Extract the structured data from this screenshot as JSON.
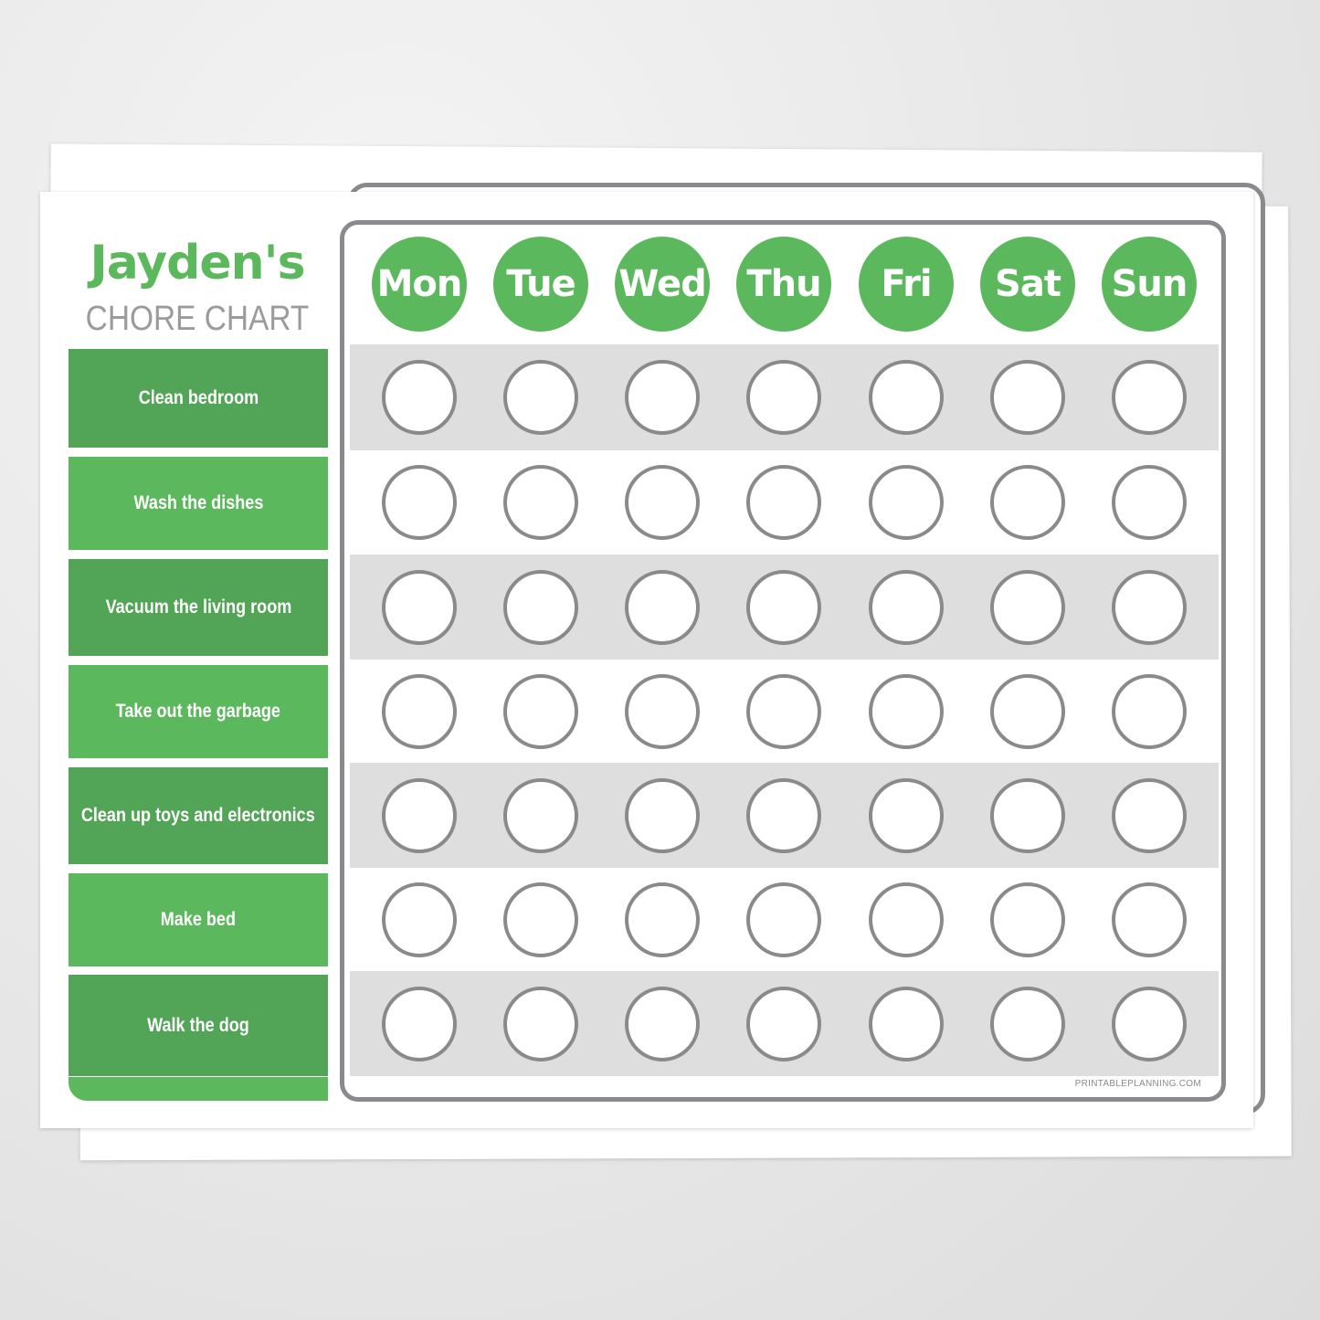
{
  "chart": {
    "title_name": "Jayden's",
    "title_sub": "CHORE CHART",
    "days": [
      "Mon",
      "Tue",
      "Wed",
      "Thu",
      "Fri",
      "Sat",
      "Sun"
    ],
    "chores": [
      "Clean bedroom",
      "Wash the dishes",
      "Vacuum the living room",
      "Take out the garbage",
      "Clean up toys and electronics",
      "Make bed",
      "Walk the dog"
    ],
    "watermark": "PRINTABLEPLANNING.COM"
  },
  "colors": {
    "accent_green": "#5cb85c",
    "dark_green": "#52a456",
    "frame_gray": "#8a8a8e",
    "stripe_gray": "#dedede",
    "subtitle_gray": "#9b9b9b"
  }
}
